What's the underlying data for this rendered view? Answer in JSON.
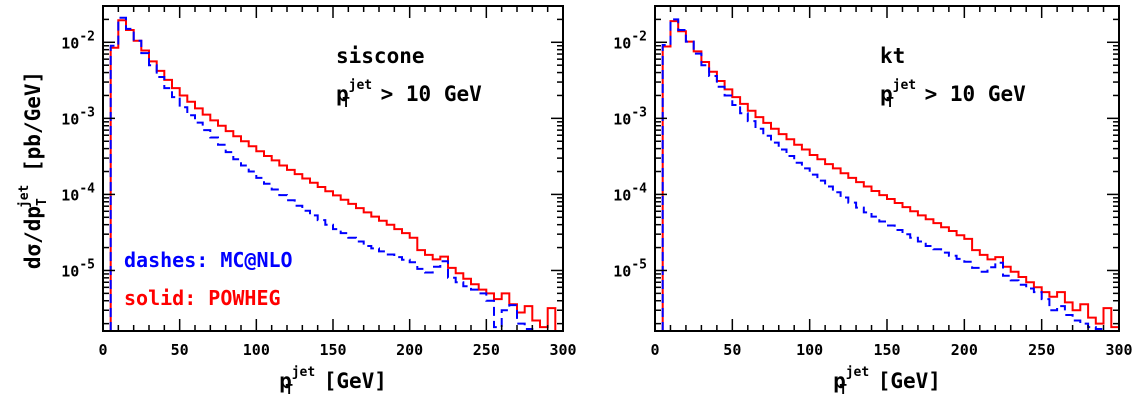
{
  "chart_data": [
    {
      "type": "line",
      "step": true,
      "yscale": "log",
      "xlim": [
        0,
        300
      ],
      "ylim": [
        1.6e-06,
        0.03
      ],
      "xticks": [
        "0",
        "50",
        "100",
        "150",
        "200",
        "250",
        "300"
      ],
      "yticks": [
        {
          "value": 0.01,
          "mantissa": "10",
          "exp": "-2"
        },
        {
          "value": 0.001,
          "mantissa": "10",
          "exp": "-3"
        },
        {
          "value": 0.0001,
          "mantissa": "10",
          "exp": "-4"
        },
        {
          "value": 1e-05,
          "mantissa": "10",
          "exp": "-5"
        }
      ],
      "ylabel": {
        "main": "dσ/dp",
        "sub": "T",
        "sup": "jet",
        "tail": " [pb/GeV]"
      },
      "xlabel": {
        "main": "p",
        "sub": "T",
        "sup": "jet",
        "tail": " [GeV]"
      },
      "annotation": {
        "line1": "siscone",
        "line2": {
          "main": "p",
          "sub": "T",
          "sup": "jet",
          "tail": " > 10 GeV"
        }
      },
      "legend": {
        "dashes": "dashes: MC@NLO",
        "solid": "solid: POWHEG",
        "position": "bottom-left"
      },
      "bin_width": 5,
      "x": [
        5,
        10,
        15,
        20,
        25,
        30,
        35,
        40,
        45,
        50,
        55,
        60,
        65,
        70,
        75,
        80,
        85,
        90,
        95,
        100,
        105,
        110,
        115,
        120,
        125,
        130,
        135,
        140,
        145,
        150,
        155,
        160,
        165,
        170,
        175,
        180,
        185,
        190,
        195,
        200,
        205,
        210,
        215,
        220,
        225,
        230,
        235,
        240,
        245,
        250,
        255,
        260,
        265,
        270,
        275,
        280,
        285,
        290,
        295
      ],
      "series": [
        {
          "name": "solid: POWHEG",
          "color": "#ff0000",
          "dash": "solid",
          "values": [
            0.0085,
            0.0195,
            0.0145,
            0.0105,
            0.0078,
            0.0056,
            0.0042,
            0.0032,
            0.0025,
            0.002,
            0.00165,
            0.00135,
            0.00112,
            0.00094,
            0.0008,
            0.00068,
            0.00058,
            0.0005,
            0.00043,
            0.00037,
            0.00032,
            0.00028,
            0.00024,
            0.00021,
            0.000185,
            0.000162,
            0.000142,
            0.000125,
            0.00011,
            9.7e-05,
            8.5e-05,
            7.5e-05,
            6.6e-05,
            5.8e-05,
            5.1e-05,
            4.5e-05,
            4e-05,
            3.5e-05,
            3.1e-05,
            2.7e-05,
            1.85e-05,
            1.6e-05,
            1.4e-05,
            1.52e-05,
            1.08e-05,
            9.2e-06,
            7.8e-06,
            6.6e-06,
            5.6e-06,
            5e-06,
            4.2e-06,
            5e-06,
            3.6e-06,
            2.8e-06,
            3.4e-06,
            2.2e-06,
            1.8e-06,
            3.2e-06,
            1.6e-06
          ]
        },
        {
          "name": "dashes: MC@NLO",
          "color": "#0000ff",
          "dash": "dashed",
          "values": [
            0.009,
            0.021,
            0.015,
            0.0105,
            0.0072,
            0.005,
            0.0035,
            0.0025,
            0.0019,
            0.0014,
            0.0011,
            0.00088,
            0.0007,
            0.00056,
            0.00045,
            0.00036,
            0.00029,
            0.00024,
            0.0002,
            0.000165,
            0.000138,
            0.000116,
            9.8e-05,
            8.4e-05,
            7.1e-05,
            6.1e-05,
            5.3e-05,
            4.6e-05,
            4e-05,
            3.5e-05,
            3.1e-05,
            2.7e-05,
            2.4e-05,
            2.1e-05,
            1.95e-05,
            1.78e-05,
            1.62e-05,
            1.5e-05,
            1.38e-05,
            1.28e-05,
            1.05e-05,
            9.4e-06,
            1.12e-05,
            1.32e-05,
            8e-06,
            7e-06,
            6.2e-06,
            5.6e-06,
            5e-06,
            4e-06,
            1.8e-06,
            3e-06,
            3.5e-06,
            2e-06,
            1.7e-06,
            1.6e-06,
            1.6e-06,
            1.6e-06,
            1.6e-06
          ]
        }
      ]
    },
    {
      "type": "line",
      "step": true,
      "yscale": "log",
      "xlim": [
        0,
        300
      ],
      "ylim": [
        1.6e-06,
        0.03
      ],
      "xticks": [
        "0",
        "50",
        "100",
        "150",
        "200",
        "250",
        "300"
      ],
      "yticks": [
        {
          "value": 0.01,
          "mantissa": "10",
          "exp": "-2"
        },
        {
          "value": 0.001,
          "mantissa": "10",
          "exp": "-3"
        },
        {
          "value": 0.0001,
          "mantissa": "10",
          "exp": "-4"
        },
        {
          "value": 1e-05,
          "mantissa": "10",
          "exp": "-5"
        }
      ],
      "xlabel": {
        "main": "p",
        "sub": "T",
        "sup": "jet",
        "tail": " [GeV]"
      },
      "annotation": {
        "line1": "kt",
        "line2": {
          "main": "p",
          "sub": "T",
          "sup": "jet",
          "tail": " > 10 GeV"
        }
      },
      "bin_width": 5,
      "x": [
        5,
        10,
        15,
        20,
        25,
        30,
        35,
        40,
        45,
        50,
        55,
        60,
        65,
        70,
        75,
        80,
        85,
        90,
        95,
        100,
        105,
        110,
        115,
        120,
        125,
        130,
        135,
        140,
        145,
        150,
        155,
        160,
        165,
        170,
        175,
        180,
        185,
        190,
        195,
        200,
        205,
        210,
        215,
        220,
        225,
        230,
        235,
        240,
        245,
        250,
        255,
        260,
        265,
        270,
        275,
        280,
        285,
        290,
        295
      ],
      "series": [
        {
          "name": "solid: POWHEG",
          "color": "#ff0000",
          "dash": "solid",
          "values": [
            0.0088,
            0.019,
            0.014,
            0.0102,
            0.0076,
            0.0055,
            0.0041,
            0.0031,
            0.0024,
            0.0019,
            0.00155,
            0.00126,
            0.00104,
            0.00087,
            0.00073,
            0.00062,
            0.00053,
            0.00045,
            0.00039,
            0.00033,
            0.00029,
            0.00025,
            0.00022,
            0.00019,
            0.000165,
            0.000145,
            0.000127,
            0.000111,
            9.8e-05,
            8.7e-05,
            7.7e-05,
            6.8e-05,
            6e-05,
            5.3e-05,
            4.7e-05,
            4.2e-05,
            3.7e-05,
            3.3e-05,
            2.9e-05,
            2.6e-05,
            1.85e-05,
            1.6e-05,
            1.4e-05,
            1.5e-05,
            1.12e-05,
            9.6e-06,
            8.2e-06,
            7e-06,
            6e-06,
            5.2e-06,
            4.5e-06,
            5.2e-06,
            3.8e-06,
            3e-06,
            3.6e-06,
            2.4e-06,
            2e-06,
            3.2e-06,
            1.8e-06
          ]
        },
        {
          "name": "dashes: MC@NLO",
          "color": "#0000ff",
          "dash": "dashed",
          "values": [
            0.0092,
            0.02,
            0.0145,
            0.0102,
            0.0071,
            0.005,
            0.0036,
            0.0026,
            0.002,
            0.0015,
            0.00117,
            0.00092,
            0.00073,
            0.00059,
            0.00048,
            0.00039,
            0.00032,
            0.00026,
            0.00022,
            0.000182,
            0.000152,
            0.000127,
            0.000107,
            9.1e-05,
            7.8e-05,
            6.7e-05,
            5.8e-05,
            5.1e-05,
            4.4e-05,
            3.9e-05,
            3.4e-05,
            3e-05,
            2.7e-05,
            2.4e-05,
            2.1e-05,
            1.9e-05,
            1.72e-05,
            1.56e-05,
            1.42e-05,
            1.3e-05,
            1.08e-05,
            9.6e-06,
            1.1e-05,
            1.26e-05,
            8.5e-06,
            7.4e-06,
            6.5e-06,
            5.8e-06,
            5.2e-06,
            4.2e-06,
            3e-06,
            3.4e-06,
            2.6e-06,
            2.2e-06,
            2e-06,
            1.8e-06,
            1.7e-06,
            1.6e-06,
            1.6e-06
          ]
        }
      ]
    }
  ]
}
